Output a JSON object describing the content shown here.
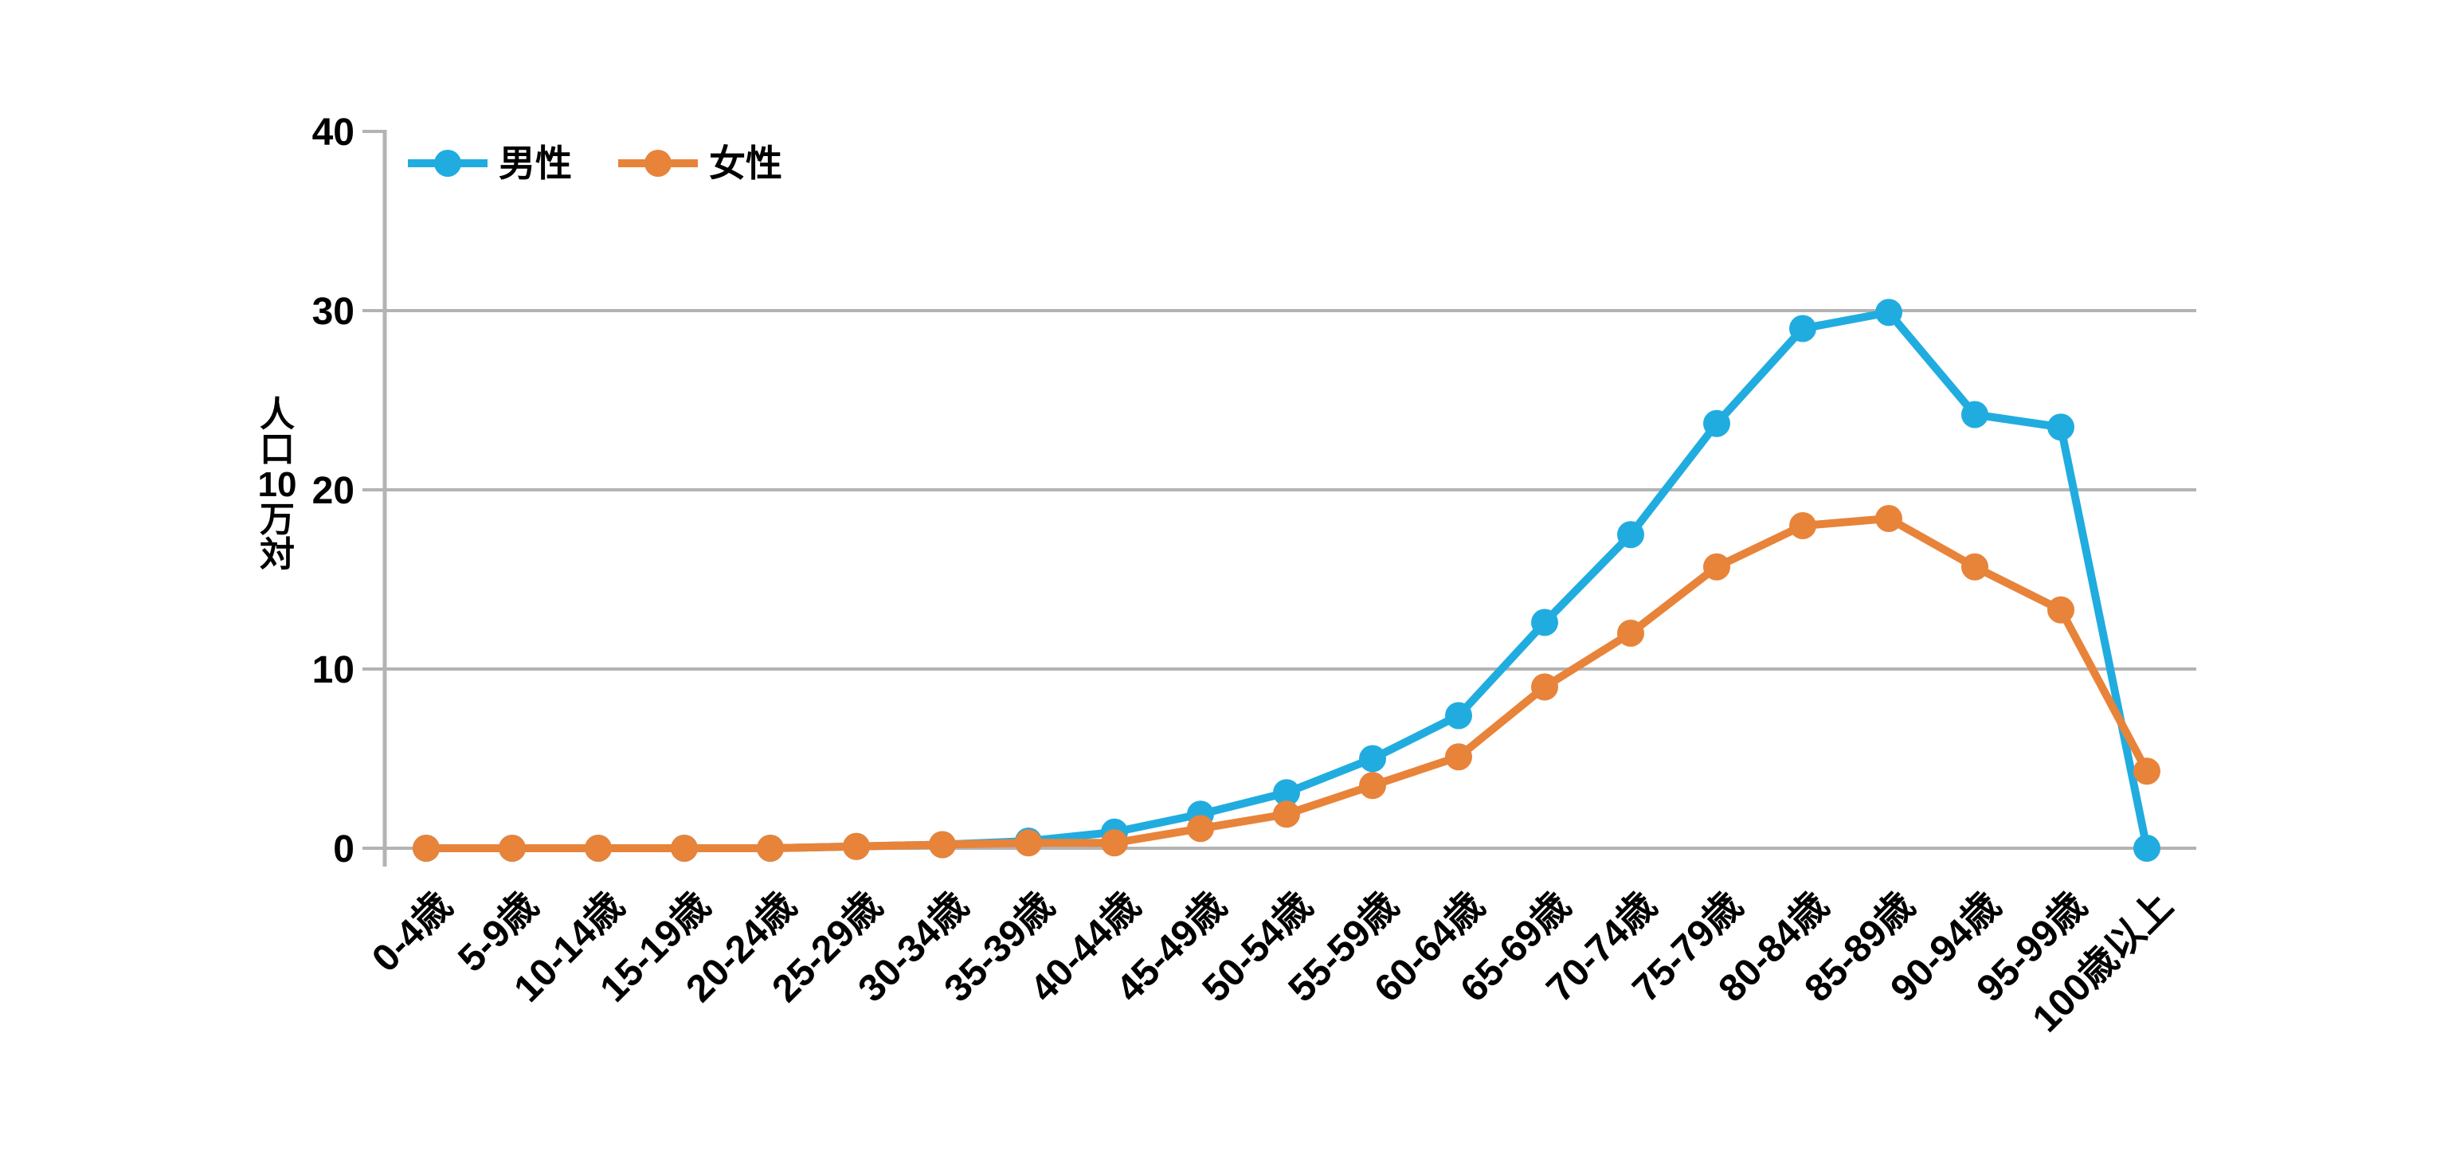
{
  "chart_data": {
    "type": "line",
    "title": "",
    "xlabel": "",
    "ylabel": "人口10万対",
    "ylim": [
      0,
      40
    ],
    "yticks": [
      0,
      10,
      20,
      30,
      40
    ],
    "grid": "horizontal",
    "legend_position": "top-left",
    "background_color": "#ffffff",
    "axis_color": "#b3b3b3",
    "text_color": "#000000",
    "categories": [
      "0-4歳",
      "5-9歳",
      "10-14歳",
      "15-19歳",
      "20-24歳",
      "25-29歳",
      "30-34歳",
      "35-39歳",
      "40-44歳",
      "45-49歳",
      "50-54歳",
      "55-59歳",
      "60-64歳",
      "65-69歳",
      "70-74歳",
      "75-79歳",
      "80-84歳",
      "85-89歳",
      "90-94歳",
      "95-99歳",
      "100歳以上"
    ],
    "series": [
      {
        "name": "男性",
        "color": "#21ACE0",
        "values": [
          0,
          0,
          0,
          0,
          0,
          0.1,
          0.2,
          0.4,
          0.9,
          1.9,
          3.1,
          5.0,
          7.4,
          12.6,
          17.5,
          23.7,
          29.0,
          29.9,
          24.2,
          23.5,
          0
        ]
      },
      {
        "name": "女性",
        "color": "#E8833A",
        "values": [
          0,
          0,
          0,
          0,
          0,
          0.1,
          0.2,
          0.3,
          0.3,
          1.1,
          1.9,
          3.5,
          5.1,
          9.0,
          12.0,
          15.7,
          18.0,
          18.4,
          15.7,
          13.3,
          4.3
        ]
      }
    ]
  }
}
